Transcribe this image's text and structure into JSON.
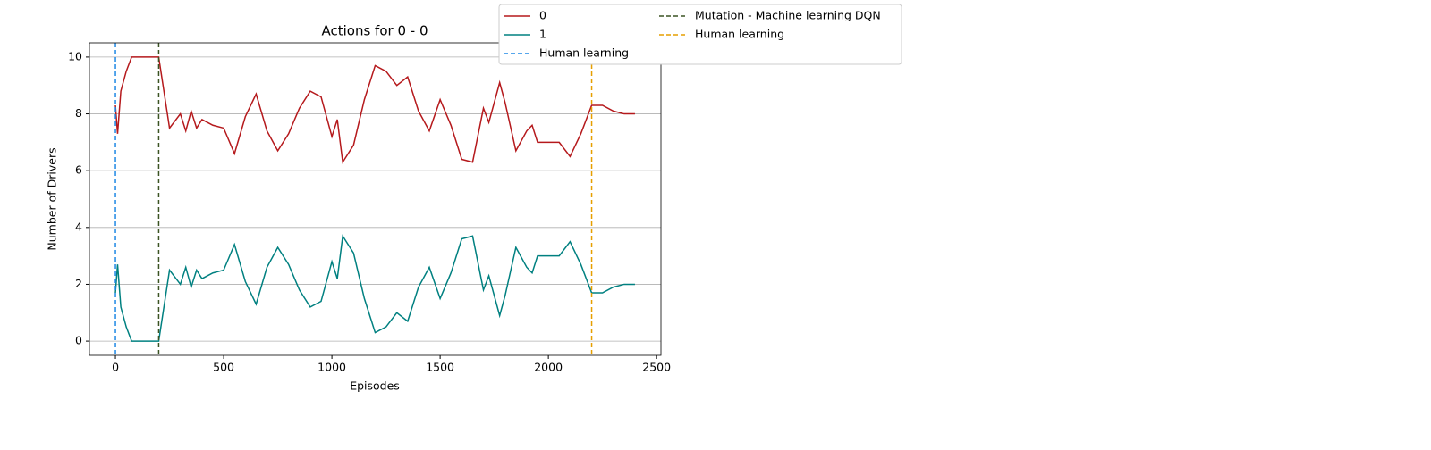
{
  "chart_data": {
    "type": "line",
    "title": "Actions for 0 - 0",
    "xlabel": "Episodes",
    "ylabel": "Number of Drivers",
    "x": [
      0,
      10,
      25,
      50,
      75,
      100,
      150,
      200,
      250,
      300,
      325,
      350,
      375,
      400,
      450,
      500,
      550,
      600,
      650,
      700,
      750,
      800,
      850,
      900,
      950,
      1000,
      1025,
      1050,
      1100,
      1150,
      1200,
      1250,
      1300,
      1350,
      1400,
      1450,
      1500,
      1550,
      1600,
      1650,
      1700,
      1725,
      1775,
      1800,
      1850,
      1900,
      1925,
      1950,
      2000,
      2050,
      2100,
      2150,
      2200,
      2250,
      2300,
      2350,
      2400
    ],
    "series": [
      {
        "name": "0",
        "color": "#b5191c",
        "values": [
          8.3,
          7.3,
          8.8,
          9.5,
          10,
          10,
          10,
          10,
          7.5,
          8.0,
          7.4,
          8.1,
          7.5,
          7.8,
          7.6,
          7.5,
          6.6,
          7.9,
          8.7,
          7.4,
          6.7,
          7.3,
          8.2,
          8.8,
          8.6,
          7.2,
          7.8,
          6.3,
          6.9,
          8.5,
          9.7,
          9.5,
          9.0,
          9.3,
          8.1,
          7.4,
          8.5,
          7.6,
          6.4,
          6.3,
          8.2,
          7.7,
          9.1,
          8.4,
          6.7,
          7.4,
          7.6,
          7.0,
          7.0,
          7.0,
          6.5,
          7.3,
          8.3,
          8.3,
          8.1,
          8.0,
          8.0
        ]
      },
      {
        "name": "1",
        "color": "#008080",
        "values": [
          1.7,
          2.7,
          1.2,
          0.5,
          0,
          0,
          0,
          0,
          2.5,
          2.0,
          2.6,
          1.9,
          2.5,
          2.2,
          2.4,
          2.5,
          3.4,
          2.1,
          1.3,
          2.6,
          3.3,
          2.7,
          1.8,
          1.2,
          1.4,
          2.8,
          2.2,
          3.7,
          3.1,
          1.5,
          0.3,
          0.5,
          1.0,
          0.7,
          1.9,
          2.6,
          1.5,
          2.4,
          3.6,
          3.7,
          1.8,
          2.3,
          0.9,
          1.6,
          3.3,
          2.6,
          2.4,
          3.0,
          3.0,
          3.0,
          3.5,
          2.7,
          1.7,
          1.7,
          1.9,
          2.0,
          2.0
        ]
      }
    ],
    "vlines": [
      {
        "name": "Human learning",
        "x": 0,
        "color": "#1e88e5"
      },
      {
        "name": "Mutation - Machine learning DQN",
        "x": 200,
        "color": "#3b5323"
      },
      {
        "name": "Human learning",
        "x": 2200,
        "color": "#e69f00"
      }
    ],
    "xlim": [
      -120,
      2520
    ],
    "ylim": [
      -0.5,
      10.5
    ],
    "xticks": [
      0,
      500,
      1000,
      1500,
      2000,
      2500
    ],
    "yticks": [
      0,
      2,
      4,
      6,
      8,
      10
    ],
    "grid": "y"
  }
}
